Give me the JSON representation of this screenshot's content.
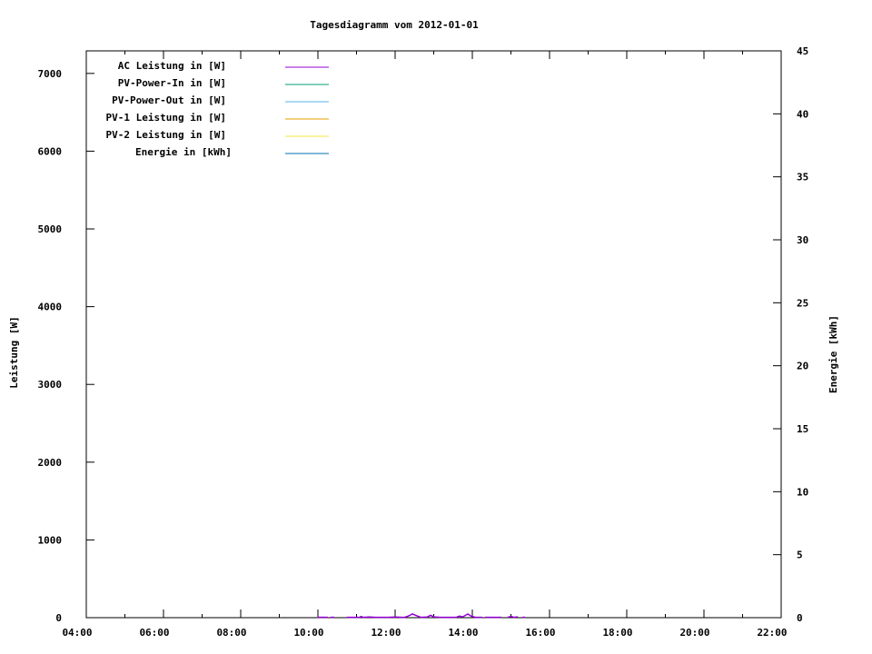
{
  "chart_data": {
    "type": "line",
    "title": "Tagesdiagramm vom 2012-01-01",
    "xlabel": "",
    "ylabel": "Leistung [W]",
    "y2label": "Energie [kWh]",
    "xlim": [
      "04:00",
      "22:00"
    ],
    "ylim": [
      0,
      7290
    ],
    "y2lim": [
      0,
      45
    ],
    "x_ticks": [
      "04:00",
      "06:00",
      "08:00",
      "10:00",
      "12:00",
      "14:00",
      "16:00",
      "18:00",
      "20:00",
      "22:00"
    ],
    "y_ticks": [
      0,
      1000,
      2000,
      3000,
      4000,
      5000,
      6000,
      7000
    ],
    "y2_ticks": [
      0,
      5,
      10,
      15,
      20,
      25,
      30,
      35,
      40,
      45
    ],
    "grid": false,
    "legend_position": "top-left",
    "series": [
      {
        "name": "AC Leistung in [W]",
        "color": "#9400d3",
        "axis": "y",
        "points": [
          [
            "10:00",
            5
          ],
          [
            "10:15",
            5
          ],
          null,
          [
            "10:20",
            5
          ],
          [
            "10:25",
            5
          ],
          null,
          [
            "10:45",
            5
          ],
          [
            "11:05",
            5
          ],
          [
            "11:07",
            15
          ],
          [
            "11:10",
            5
          ],
          [
            "11:20",
            8
          ],
          [
            "11:30",
            5
          ],
          [
            "11:50",
            5
          ],
          [
            "12:00",
            8
          ],
          [
            "12:10",
            5
          ],
          [
            "12:15",
            5
          ],
          [
            "12:20",
            20
          ],
          [
            "12:27",
            47
          ],
          [
            "12:35",
            20
          ],
          [
            "12:40",
            5
          ],
          [
            "12:50",
            8
          ],
          [
            "12:55",
            30
          ],
          [
            "13:00",
            10
          ],
          [
            "13:10",
            5
          ],
          [
            "13:35",
            5
          ],
          [
            "13:40",
            20
          ],
          [
            "13:45",
            10
          ],
          [
            "13:53",
            47
          ],
          [
            "13:58",
            20
          ],
          [
            "14:05",
            5
          ],
          [
            "14:15",
            5
          ],
          null,
          [
            "14:20",
            5
          ],
          [
            "14:45",
            5
          ],
          null,
          [
            "14:55",
            5
          ],
          [
            "15:00",
            15
          ],
          [
            "15:05",
            5
          ],
          [
            "15:10",
            10
          ],
          null,
          [
            "15:18",
            5
          ],
          [
            "15:22",
            5
          ]
        ]
      },
      {
        "name": "PV-Power-In in [W]",
        "color": "#009e73",
        "axis": "y",
        "points": []
      },
      {
        "name": "PV-Power-Out in [W]",
        "color": "#56b4e9",
        "axis": "y",
        "points": []
      },
      {
        "name": "PV-1 Leistung in [W]",
        "color": "#e69f00",
        "axis": "y",
        "points": []
      },
      {
        "name": "PV-2 Leistung in [W]",
        "color": "#f0e442",
        "axis": "y",
        "points": []
      },
      {
        "name": "Energie in [kWh]",
        "color": "#0072b2",
        "axis": "y2",
        "points": []
      }
    ]
  }
}
